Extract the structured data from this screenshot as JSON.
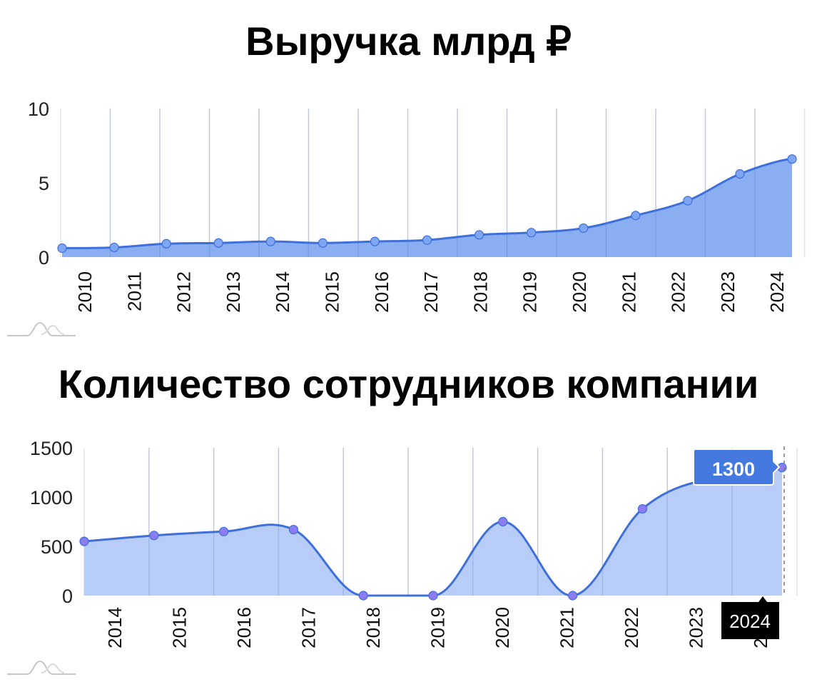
{
  "charts": [
    {
      "title": "Выручка млрд ₽",
      "y_ticks": [
        "0",
        "5",
        "10"
      ],
      "x_labels": [
        "2010",
        "2011",
        "2012",
        "2013",
        "2014",
        "2015",
        "2016",
        "2017",
        "2018",
        "2019",
        "2020",
        "2021",
        "2022",
        "2023",
        "2024"
      ]
    },
    {
      "title": "Количество сотрудников компании",
      "y_ticks": [
        "0",
        "500",
        "1000",
        "1500"
      ],
      "x_labels": [
        "2014",
        "2015",
        "2016",
        "2017",
        "2018",
        "2019",
        "2020",
        "2021",
        "2022",
        "2023",
        "2024"
      ],
      "tooltip_value": "1300",
      "tooltip_category": "2024"
    }
  ],
  "colors": {
    "line": "#3f6fd8",
    "fill_top": "#8aaef2",
    "fill_bottom": "#b7cdf8",
    "point_top": "#7ea6f2",
    "point_bottom": "#8c7cf0",
    "tooltip_bg": "#4479e0",
    "category_tooltip_bg": "#000000",
    "grid": "#e3e3e3"
  },
  "chart_data": [
    {
      "type": "area",
      "title": "Выручка млрд ₽",
      "xlabel": "",
      "ylabel": "",
      "categories": [
        "2010",
        "2011",
        "2012",
        "2013",
        "2014",
        "2015",
        "2016",
        "2017",
        "2018",
        "2019",
        "2020",
        "2021",
        "2022",
        "2023",
        "2024"
      ],
      "values": [
        0.6,
        0.65,
        0.9,
        0.95,
        1.05,
        0.95,
        1.05,
        1.15,
        1.5,
        1.65,
        1.95,
        2.8,
        3.8,
        5.6,
        6.6
      ],
      "ylim": [
        0,
        10
      ],
      "y_ticks": [
        0,
        5,
        10
      ],
      "grid": "vertical",
      "legend": "none"
    },
    {
      "type": "area",
      "title": "Количество сотрудников компании",
      "xlabel": "",
      "ylabel": "",
      "categories": [
        "2014",
        "2015",
        "2016",
        "2017",
        "2018",
        "2019",
        "2020",
        "2021",
        "2022",
        "2023",
        "2024"
      ],
      "values": [
        550,
        610,
        650,
        670,
        0,
        0,
        750,
        0,
        880,
        1200,
        1300
      ],
      "ylim": [
        0,
        1500
      ],
      "y_ticks": [
        0,
        500,
        1000,
        1500
      ],
      "grid": "vertical",
      "legend": "none",
      "annotations": [
        {
          "category": "2024",
          "value": 1300,
          "label": "1300"
        }
      ]
    }
  ]
}
